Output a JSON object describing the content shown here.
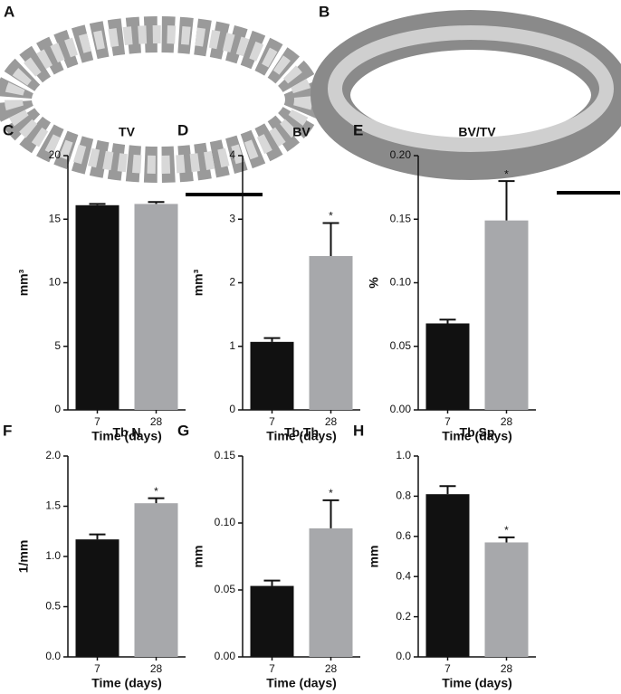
{
  "panels": [
    "A",
    "B"
  ],
  "chart_data": [
    {
      "type": "bar",
      "panel": "C",
      "title": "TV",
      "ylabel": "mm³",
      "xlabel": "Time (days)",
      "categories": [
        "7",
        "28"
      ],
      "values": [
        16.1,
        16.2
      ],
      "errors": [
        0.1,
        0.15
      ],
      "value_annotations": [
        null,
        null
      ],
      "colors": [
        "#111111",
        "#a7a8ab"
      ],
      "ylim": [
        0,
        20
      ],
      "yticks": [
        0,
        5,
        10,
        15,
        20
      ]
    },
    {
      "type": "bar",
      "panel": "D",
      "title": "BV",
      "ylabel": "mm³",
      "xlabel": "Time (days)",
      "categories": [
        "7",
        "28"
      ],
      "values": [
        1.07,
        2.42
      ],
      "errors": [
        0.06,
        0.52
      ],
      "value_annotations": [
        null,
        "*"
      ],
      "colors": [
        "#111111",
        "#a7a8ab"
      ],
      "ylim": [
        0,
        4
      ],
      "yticks": [
        0,
        1,
        2,
        3,
        4
      ]
    },
    {
      "type": "bar",
      "panel": "E",
      "title": "BV/TV",
      "ylabel": "%",
      "xlabel": "Time (days)",
      "categories": [
        "7",
        "28"
      ],
      "values": [
        0.068,
        0.149
      ],
      "errors": [
        0.003,
        0.031
      ],
      "value_annotations": [
        null,
        "*"
      ],
      "colors": [
        "#111111",
        "#a7a8ab"
      ],
      "ylim": [
        0,
        0.2
      ],
      "yticks": [
        {
          "value": 0,
          "label": "0.00"
        },
        {
          "value": 0.05,
          "label": "0.05"
        },
        {
          "value": 0.1,
          "label": "0.10"
        },
        {
          "value": 0.15,
          "label": "0.15"
        },
        {
          "value": 0.2,
          "label": "0.20"
        }
      ]
    },
    {
      "type": "bar",
      "panel": "F",
      "title": "Tb.N",
      "ylabel": "1/mm",
      "xlabel": "Time (days)",
      "categories": [
        "7",
        "28"
      ],
      "values": [
        1.17,
        1.53
      ],
      "errors": [
        0.05,
        0.05
      ],
      "value_annotations": [
        null,
        "*"
      ],
      "colors": [
        "#111111",
        "#a7a8ab"
      ],
      "ylim": [
        0,
        2
      ],
      "yticks": [
        {
          "value": 0,
          "label": "0.0"
        },
        {
          "value": 0.5,
          "label": "0.5"
        },
        {
          "value": 1,
          "label": "1.0"
        },
        {
          "value": 1.5,
          "label": "1.5"
        },
        {
          "value": 2,
          "label": "2.0"
        }
      ]
    },
    {
      "type": "bar",
      "panel": "G",
      "title": "Tb.Th",
      "ylabel": "mm",
      "xlabel": "Time (days)",
      "categories": [
        "7",
        "28"
      ],
      "values": [
        0.053,
        0.096
      ],
      "errors": [
        0.004,
        0.021
      ],
      "value_annotations": [
        null,
        "*"
      ],
      "colors": [
        "#111111",
        "#a7a8ab"
      ],
      "ylim": [
        0,
        0.15
      ],
      "yticks": [
        {
          "value": 0,
          "label": "0.00"
        },
        {
          "value": 0.05,
          "label": "0.05"
        },
        {
          "value": 0.1,
          "label": "0.10"
        },
        {
          "value": 0.15,
          "label": "0.15"
        }
      ]
    },
    {
      "type": "bar",
      "panel": "H",
      "title": "Tb.Sp",
      "ylabel": "mm",
      "xlabel": "Time (days)",
      "categories": [
        "7",
        "28"
      ],
      "values": [
        0.81,
        0.57
      ],
      "errors": [
        0.04,
        0.025
      ],
      "value_annotations": [
        null,
        "*"
      ],
      "colors": [
        "#111111",
        "#a7a8ab"
      ],
      "ylim": [
        0,
        1
      ],
      "yticks": [
        {
          "value": 0,
          "label": "0.0"
        },
        {
          "value": 0.2,
          "label": "0.2"
        },
        {
          "value": 0.4,
          "label": "0.4"
        },
        {
          "value": 0.6,
          "label": "0.6"
        },
        {
          "value": 0.8,
          "label": "0.8"
        },
        {
          "value": 1,
          "label": "1.0"
        }
      ]
    }
  ]
}
